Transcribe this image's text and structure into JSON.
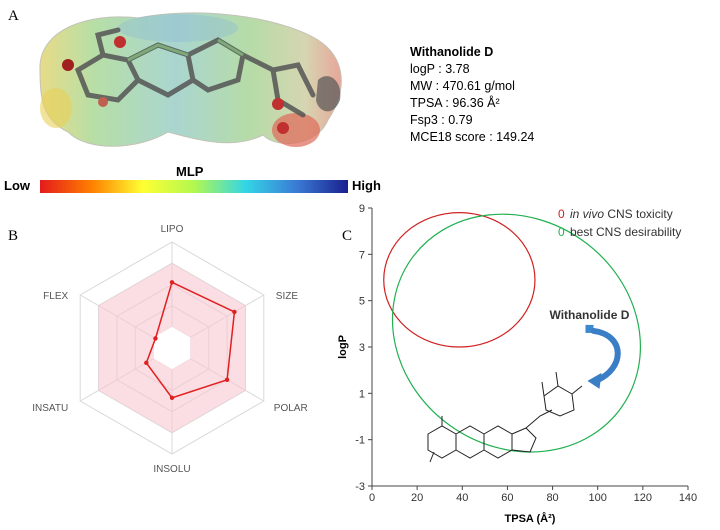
{
  "panels": {
    "a": "A",
    "b": "B",
    "c": "C"
  },
  "compound": {
    "name": "Withanolide D",
    "properties": [
      "logP : 3.78",
      "MW : 470.61 g/mol",
      "TPSA : 96.36 Å²",
      "Fsp3 :  0.79",
      "MCE18 score : 149.24"
    ]
  },
  "mlp_scale": {
    "title": "MLP",
    "low": "Low",
    "high": "High"
  },
  "radar": {
    "axes": [
      "LIPO",
      "SIZE",
      "POLAR",
      "INSOLU",
      "INSATU",
      "FLEX"
    ]
  },
  "chart_data": [
    {
      "type": "radar",
      "axes": [
        "LIPO",
        "SIZE",
        "POLAR",
        "INSOLU",
        "INSATU",
        "FLEX"
      ],
      "values": [
        0.62,
        0.68,
        0.6,
        0.47,
        0.28,
        0.18
      ],
      "colors": {
        "series": "#e02020",
        "optimal_area": "#f8c8d0"
      }
    },
    {
      "type": "scatter",
      "xlabel": "TPSA (Å²)",
      "ylabel": "logP",
      "xlim": [
        0,
        140
      ],
      "ylim": [
        -3,
        9
      ],
      "x_ticks": [
        0,
        20,
        40,
        60,
        80,
        100,
        120,
        140
      ],
      "y_ticks": [
        -3,
        -1,
        1,
        3,
        5,
        7,
        9
      ],
      "legend": [
        {
          "marker": "0",
          "label": "in vivo CNS toxicity",
          "italic_part": "in vivo",
          "color": "#d02020"
        },
        {
          "marker": "0",
          "label": "best CNS desirability",
          "color": "#20b050"
        }
      ],
      "ellipses": [
        {
          "name": "in vivo CNS toxicity",
          "color": "#d02020",
          "cx": 38.7,
          "cy": 5.9,
          "rx": 33.5,
          "ry": 2.9,
          "angle": 0
        },
        {
          "name": "best CNS desirability",
          "color": "#20b050",
          "cx": 64,
          "cy": 3.6,
          "rx": 77,
          "ry": 4.2,
          "angle": -35
        }
      ],
      "point": {
        "label": "Withanolide D",
        "x": 96.36,
        "y": 3.78,
        "color": "#3a8ad0"
      }
    }
  ]
}
